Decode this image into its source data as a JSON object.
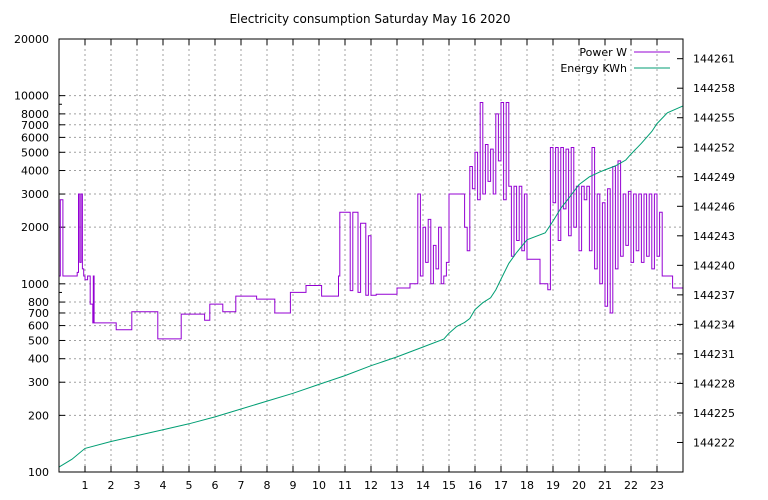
{
  "chart_data": {
    "type": "line",
    "title": "Electricity consumption Saturday May 16 2020",
    "xlabel": "",
    "x_ticks": [
      "1",
      "2",
      "3",
      "4",
      "5",
      "6",
      "7",
      "8",
      "9",
      "10",
      "11",
      "12",
      "13",
      "14",
      "15",
      "16",
      "17",
      "18",
      "19",
      "20",
      "21",
      "22",
      "23"
    ],
    "xlim": [
      0,
      24
    ],
    "y_left": {
      "scale": "log",
      "ylim": [
        100,
        20000
      ],
      "ticks": [
        100,
        200,
        300,
        400,
        500,
        600,
        700,
        800,
        1000,
        2000,
        3000,
        4000,
        5000,
        6000,
        7000,
        8000,
        10000,
        20000
      ],
      "tick_labels": [
        "100",
        "200",
        "300",
        "400",
        "500",
        "600",
        "700",
        "800",
        "1000",
        "2000",
        "3000",
        "4000",
        "5000",
        "6000",
        "7000",
        "8000",
        "10000",
        "20000"
      ]
    },
    "y_right": {
      "scale": "linear",
      "ylim": [
        144219,
        144263
      ],
      "ticks": [
        144222,
        144225,
        144228,
        144231,
        144234,
        144237,
        144240,
        144243,
        144246,
        144249,
        144252,
        144255,
        144258,
        144261
      ],
      "tick_labels": [
        "144222",
        "144225",
        "144228",
        "144231",
        "144234",
        "144237",
        "144240",
        "144243",
        "144246",
        "144249",
        "144252",
        "144255",
        "144258",
        "144261"
      ]
    },
    "grid": true,
    "legend_position": "top-right",
    "series": [
      {
        "name": "Power W",
        "axis": "left",
        "color": "#9400d3",
        "step": true,
        "x": [
          0,
          0.05,
          0.15,
          0.2,
          0.7,
          0.75,
          0.8,
          0.85,
          0.9,
          0.95,
          1.0,
          1.1,
          1.2,
          1.3,
          1.32,
          1.35,
          1.4,
          1.45,
          1.5,
          1.6,
          2.2,
          2.8,
          3.8,
          4.7,
          5.6,
          5.8,
          6.3,
          6.8,
          7.6,
          8.3,
          8.9,
          9.5,
          10.1,
          10.7,
          10.75,
          10.8,
          11.2,
          11.3,
          11.5,
          11.6,
          11.8,
          11.9,
          12.0,
          12.2,
          12.6,
          13.0,
          13.5,
          13.8,
          13.9,
          14.0,
          14.1,
          14.2,
          14.3,
          14.4,
          14.5,
          14.6,
          14.7,
          14.8,
          14.9,
          15.0,
          15.5,
          15.6,
          15.7,
          15.8,
          15.9,
          16.0,
          16.1,
          16.2,
          16.3,
          16.4,
          16.5,
          16.6,
          16.7,
          16.8,
          16.9,
          17.0,
          17.1,
          17.2,
          17.3,
          17.4,
          17.5,
          17.6,
          17.7,
          17.8,
          17.9,
          18.0,
          18.5,
          18.8,
          18.9,
          19.0,
          19.1,
          19.2,
          19.3,
          19.4,
          19.5,
          19.6,
          19.7,
          19.8,
          19.9,
          20.0,
          20.1,
          20.2,
          20.3,
          20.4,
          20.5,
          20.6,
          20.7,
          20.8,
          20.9,
          21.0,
          21.1,
          21.2,
          21.3,
          21.4,
          21.5,
          21.6,
          21.7,
          21.8,
          21.9,
          22.0,
          22.1,
          22.2,
          22.3,
          22.4,
          22.5,
          22.6,
          22.7,
          22.8,
          22.9,
          23.0,
          23.1,
          23.2,
          23.6,
          24.0
        ],
        "y": [
          1100,
          2800,
          1100,
          1100,
          1150,
          3000,
          1300,
          3000,
          1200,
          1100,
          1050,
          1100,
          780,
          620,
          1100,
          620,
          620,
          620,
          620,
          620,
          570,
          710,
          510,
          690,
          640,
          780,
          710,
          860,
          830,
          700,
          900,
          980,
          860,
          860,
          1100,
          2400,
          920,
          2400,
          900,
          2100,
          870,
          1800,
          870,
          880,
          880,
          950,
          1000,
          3000,
          1100,
          2000,
          1300,
          2200,
          1000,
          1600,
          1200,
          2000,
          1000,
          1100,
          1300,
          3000,
          3000,
          2000,
          1500,
          4200,
          3200,
          5000,
          2800,
          9200,
          3000,
          5500,
          3500,
          5200,
          3000,
          8000,
          4500,
          9200,
          2800,
          9200,
          3300,
          1400,
          3300,
          1700,
          3300,
          1500,
          3000,
          1350,
          1000,
          930,
          5300,
          2700,
          5300,
          1700,
          5300,
          2500,
          5200,
          1800,
          5300,
          2000,
          3300,
          1500,
          3300,
          2800,
          3300,
          1500,
          5300,
          1200,
          3000,
          1000,
          2700,
          760,
          3200,
          700,
          4200,
          1200,
          4500,
          1400,
          3000,
          1600,
          3100,
          1300,
          3000,
          1500,
          3000,
          1300,
          3000,
          1400,
          3000,
          1200,
          3000,
          1400,
          2400,
          1100,
          950,
          950
        ]
      },
      {
        "name": "Energy KWh",
        "axis": "right",
        "color": "#009e73",
        "step": false,
        "x": [
          0,
          0.5,
          1.0,
          2.0,
          3.0,
          4.0,
          5.0,
          6.0,
          7.0,
          8.0,
          9.0,
          10.0,
          11.0,
          12.0,
          13.0,
          14.0,
          14.8,
          15.0,
          15.3,
          15.6,
          15.8,
          16.0,
          16.3,
          16.6,
          16.8,
          17.0,
          17.3,
          17.6,
          18.0,
          18.7,
          19.0,
          19.3,
          19.6,
          20.0,
          20.4,
          20.8,
          21.0,
          21.4,
          21.8,
          22.0,
          22.4,
          22.8,
          23.0,
          23.4,
          24.0
        ],
        "y": [
          144219.5,
          144220.3,
          144221.4,
          144222.1,
          144222.7,
          144223.3,
          144223.9,
          144224.6,
          144225.4,
          144226.2,
          144227.0,
          144227.9,
          144228.8,
          144229.8,
          144230.7,
          144231.7,
          144232.5,
          144233.1,
          144233.8,
          144234.2,
          144234.6,
          144235.5,
          144236.2,
          144236.7,
          144237.5,
          144238.6,
          144240.2,
          144241.3,
          144242.6,
          144243.3,
          144244.5,
          144245.8,
          144246.8,
          144248.2,
          144249.0,
          144249.5,
          144249.7,
          144250.1,
          144250.7,
          144251.3,
          144252.4,
          144253.6,
          144254.4,
          144255.5,
          144256.2
        ]
      }
    ]
  }
}
